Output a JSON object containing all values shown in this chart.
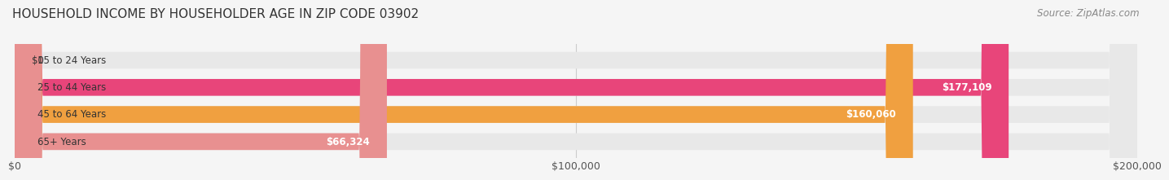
{
  "title": "HOUSEHOLD INCOME BY HOUSEHOLDER AGE IN ZIP CODE 03902",
  "source": "Source: ZipAtlas.com",
  "categories": [
    "15 to 24 Years",
    "25 to 44 Years",
    "45 to 64 Years",
    "65+ Years"
  ],
  "values": [
    0,
    177109,
    160060,
    66324
  ],
  "bar_colors": [
    "#a0a0cc",
    "#e8457a",
    "#f0a040",
    "#e89090"
  ],
  "bar_bg_color": "#e8e8e8",
  "xlim": [
    0,
    200000
  ],
  "xticks": [
    0,
    100000,
    200000
  ],
  "xtick_labels": [
    "$0",
    "$100,000",
    "$200,000"
  ],
  "background_color": "#f5f5f5",
  "bar_height": 0.62,
  "title_fontsize": 11,
  "source_fontsize": 8.5,
  "label_fontsize": 8.5,
  "xtick_fontsize": 9
}
